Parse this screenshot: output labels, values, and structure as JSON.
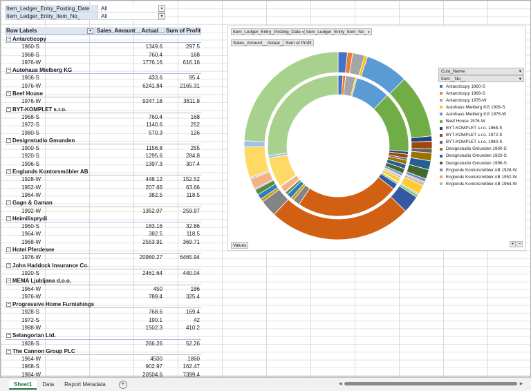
{
  "filters": [
    {
      "field": "Item_Ledger_Entry_Posting_Date",
      "value": "All"
    },
    {
      "field": "Item_Ledger_Entry_Item_No_",
      "value": "All"
    }
  ],
  "pivot": {
    "headers": {
      "row_labels": "Row Labels",
      "sales": "Sales_Amount__Actual__",
      "profit": "Sum of Profit"
    },
    "groups": [
      {
        "name": "Antarcticopy",
        "items": [
          {
            "label": "1960-S",
            "sales": "1349.6",
            "profit": "297.5"
          },
          {
            "label": "1968-S",
            "sales": "760.4",
            "profit": "168"
          },
          {
            "label": "1976-W",
            "sales": "1776.16",
            "profit": "616.16"
          }
        ]
      },
      {
        "name": "Autohaus Mielberg KG",
        "items": [
          {
            "label": "1906-S",
            "sales": "433.6",
            "profit": "95.4"
          },
          {
            "label": "1976-W",
            "sales": "6241.84",
            "profit": "2165.31"
          }
        ]
      },
      {
        "name": "Beef House",
        "items": [
          {
            "label": "1976-W",
            "sales": "9247.18",
            "profit": "3811.8"
          }
        ]
      },
      {
        "name": "BYT-KOMPLET s.r.o.",
        "items": [
          {
            "label": "1968-S",
            "sales": "760.4",
            "profit": "168"
          },
          {
            "label": "1972-S",
            "sales": "1140.6",
            "profit": "252"
          },
          {
            "label": "1980-S",
            "sales": "570.3",
            "profit": "126"
          }
        ]
      },
      {
        "name": "Designstudio Gmunden",
        "items": [
          {
            "label": "1900-S",
            "sales": "1156.8",
            "profit": "255"
          },
          {
            "label": "1920-S",
            "sales": "1295.6",
            "profit": "284.8"
          },
          {
            "label": "1996-S",
            "sales": "1397.3",
            "profit": "307.4"
          }
        ]
      },
      {
        "name": "Englunds Kontorsmöbler AB",
        "items": [
          {
            "label": "1928-W",
            "sales": "448.12",
            "profit": "152.52"
          },
          {
            "label": "1952-W",
            "sales": "207.66",
            "profit": "63.66"
          },
          {
            "label": "1964-W",
            "sales": "382.5",
            "profit": "118.5"
          }
        ]
      },
      {
        "name": "Gagn & Gaman",
        "items": [
          {
            "label": "1992-W",
            "sales": "1352.07",
            "profit": "259.97"
          }
        ]
      },
      {
        "name": "Heimilisprydi",
        "items": [
          {
            "label": "1960-S",
            "sales": "183.16",
            "profit": "32.86"
          },
          {
            "label": "1964-W",
            "sales": "382.5",
            "profit": "118.5"
          },
          {
            "label": "1968-W",
            "sales": "2553.91",
            "profit": "369.71"
          }
        ]
      },
      {
        "name": "Hotel Pferdesee",
        "items": [
          {
            "label": "1976-W",
            "sales": "20960.27",
            "profit": "6465.94"
          }
        ]
      },
      {
        "name": "John Haddock Insurance Co.",
        "items": [
          {
            "label": "1920-S",
            "sales": "2461.64",
            "profit": "440.04"
          }
        ]
      },
      {
        "name": "MEMA Ljubljana d.o.o.",
        "items": [
          {
            "label": "1964-W",
            "sales": "450",
            "profit": "186"
          },
          {
            "label": "1976-W",
            "sales": "789.4",
            "profit": "325.4"
          }
        ]
      },
      {
        "name": "Progressive Home Furnishings",
        "items": [
          {
            "label": "1928-S",
            "sales": "768.6",
            "profit": "169.4"
          },
          {
            "label": "1972-S",
            "sales": "190.1",
            "profit": "42"
          },
          {
            "label": "1988-W",
            "sales": "1502.3",
            "profit": "410.2"
          }
        ]
      },
      {
        "name": "Selangorian Ltd.",
        "items": [
          {
            "label": "1928-S",
            "sales": "266.26",
            "profit": "52.26"
          }
        ]
      },
      {
        "name": "The Cannon Group PLC",
        "items": [
          {
            "label": "1964-W",
            "sales": "4500",
            "profit": "1860"
          },
          {
            "label": "1968-S",
            "sales": "902.97",
            "profit": "162.47"
          },
          {
            "label": "1984-W",
            "sales": "20504.6",
            "profit": "7399.4"
          }
        ]
      }
    ]
  },
  "chart": {
    "filter_buttons": [
      "Item_Ledger_Entry_Posting_Date",
      "Item_Ledger_Entry_Item_No_"
    ],
    "value_buttons": [
      "Sales_Amount__Actual__",
      "Sum of Profit"
    ],
    "axis_button": "Values",
    "legend_fields": [
      "Cust_Name",
      "Item__No__"
    ],
    "legend_items": [
      {
        "label": "Antarcticopy 1960-S",
        "color": "#4472c4"
      },
      {
        "label": "Antarcticopy 1968-S",
        "color": "#ed7d31"
      },
      {
        "label": "Antarcticopy 1976-W",
        "color": "#a5a5a5"
      },
      {
        "label": "Autohaus Mielberg KG 1906-S",
        "color": "#ffc000"
      },
      {
        "label": "Autohaus Mielberg KG 1976-W",
        "color": "#5b9bd5"
      },
      {
        "label": "Beef House 1976-W",
        "color": "#70ad47"
      },
      {
        "label": "BYT-KOMPLET s.r.o. 1968-S",
        "color": "#264478"
      },
      {
        "label": "BYT-KOMPLET s.r.o. 1972-S",
        "color": "#9e480e"
      },
      {
        "label": "BYT-KOMPLET s.r.o. 1980-S",
        "color": "#636363"
      },
      {
        "label": "Designstudio Gmunden 1900-S",
        "color": "#997300"
      },
      {
        "label": "Designstudio Gmunden 1920-S",
        "color": "#255e91"
      },
      {
        "label": "Designstudio Gmunden 1996-S",
        "color": "#43682b"
      },
      {
        "label": "Englunds Kontorsmöbler AB 1928-W",
        "color": "#698ed0"
      },
      {
        "label": "Englunds Kontorsmöbler AB 1952-W",
        "color": "#f1975a"
      },
      {
        "label": "Englunds Kontorsmöbler AB 1964-W",
        "color": "#b7b7b7"
      }
    ],
    "zoom": {
      "plus": "+",
      "minus": "−"
    }
  },
  "chart_data": {
    "type": "donut",
    "title": "",
    "series": [
      {
        "name": "Sales_Amount__Actual__",
        "values": [
          1349.6,
          760.4,
          1776.16,
          433.6,
          6241.84,
          9247.18,
          760.4,
          1140.6,
          570.3,
          1156.8,
          1295.6,
          1397.3,
          448.12,
          207.66,
          382.5,
          1352.07,
          183.16,
          382.5,
          2553.91,
          20960.27,
          2461.64,
          450,
          789.4,
          768.6,
          190.1,
          1502.3,
          266.26,
          4500,
          902.97,
          20504.6
        ]
      },
      {
        "name": "Sum of Profit",
        "values": [
          297.5,
          168,
          616.16,
          95.4,
          2165.31,
          3811.8,
          168,
          252,
          126,
          255,
          284.8,
          307.4,
          152.52,
          63.66,
          118.5,
          259.97,
          32.86,
          118.5,
          369.71,
          6465.94,
          440.04,
          186,
          325.4,
          169.4,
          42,
          410.2,
          52.26,
          1860,
          162.47,
          7399.4
        ]
      }
    ],
    "palette": [
      "#4472c4",
      "#ed7d31",
      "#a5a5a5",
      "#ffc000",
      "#5b9bd5",
      "#70ad47",
      "#264478",
      "#9e480e",
      "#636363",
      "#997300",
      "#255e91",
      "#43682b",
      "#698ed0",
      "#f1975a",
      "#b7b7b7",
      "#ffcd33",
      "#7cafdd",
      "#8cc168",
      "#335aa1",
      "#d26012",
      "#848484",
      "#cc9a00",
      "#327dc2",
      "#5a8a39",
      "#8faadc",
      "#f4b183",
      "#c9c9c9",
      "#ffd966",
      "#9dc3e6",
      "#a9d18e"
    ]
  },
  "tabs": [
    "Sheet1",
    "Data",
    "Report Metadata"
  ],
  "add_tab_label": "+"
}
